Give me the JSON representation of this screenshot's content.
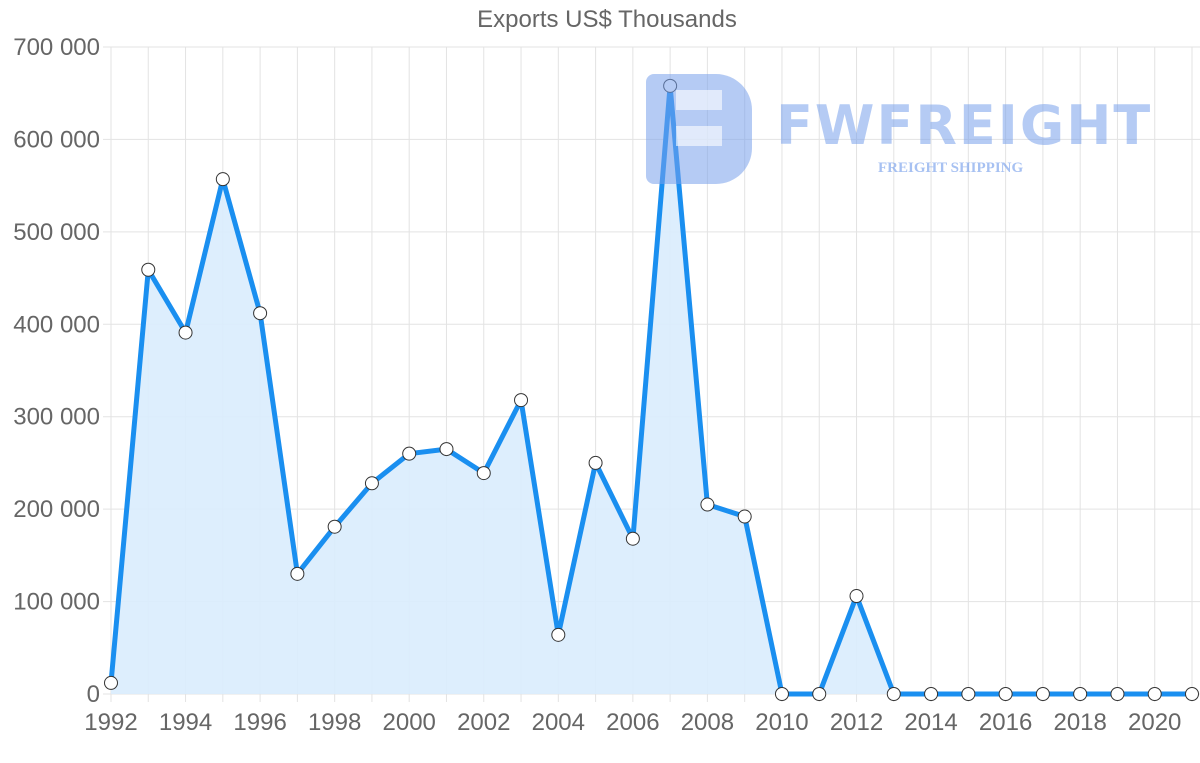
{
  "chart_data": {
    "type": "area",
    "title": "Exports US$ Thousands",
    "xlabel": "",
    "ylabel": "",
    "categories": [
      1992,
      1993,
      1994,
      1995,
      1996,
      1997,
      1998,
      1999,
      2000,
      2001,
      2002,
      2003,
      2004,
      2005,
      2006,
      2007,
      2008,
      2009,
      2010,
      2011,
      2012,
      2013,
      2014,
      2015,
      2016,
      2017,
      2018,
      2019,
      2020,
      2021
    ],
    "series": [
      {
        "name": "Exports US$ Thousands",
        "values": [
          12000,
          459000,
          391000,
          557000,
          412000,
          130000,
          181000,
          228000,
          260000,
          265000,
          239000,
          318000,
          64000,
          250000,
          168000,
          658000,
          205000,
          192000,
          0,
          0,
          106000,
          0,
          0,
          0,
          0,
          0,
          0,
          0,
          0,
          0
        ]
      }
    ],
    "ylim": [
      0,
      700000
    ],
    "yticks": [
      "0",
      "100 000",
      "200 000",
      "300 000",
      "400 000",
      "500 000",
      "600 000",
      "700 000"
    ],
    "xticks": [
      "1992",
      "1994",
      "1996",
      "1998",
      "2000",
      "2002",
      "2004",
      "2006",
      "2008",
      "2010",
      "2012",
      "2014",
      "2016",
      "2018",
      "2020"
    ],
    "grid": true,
    "legend": "none",
    "colors": {
      "line": "#1a8ff0",
      "fill": "#d9ecfd",
      "point_fill": "#ffffff",
      "point_stroke": "#333333"
    }
  },
  "watermark": {
    "name": "FWFREIGHT",
    "tagline": "FREIGHT SHIPPING"
  }
}
